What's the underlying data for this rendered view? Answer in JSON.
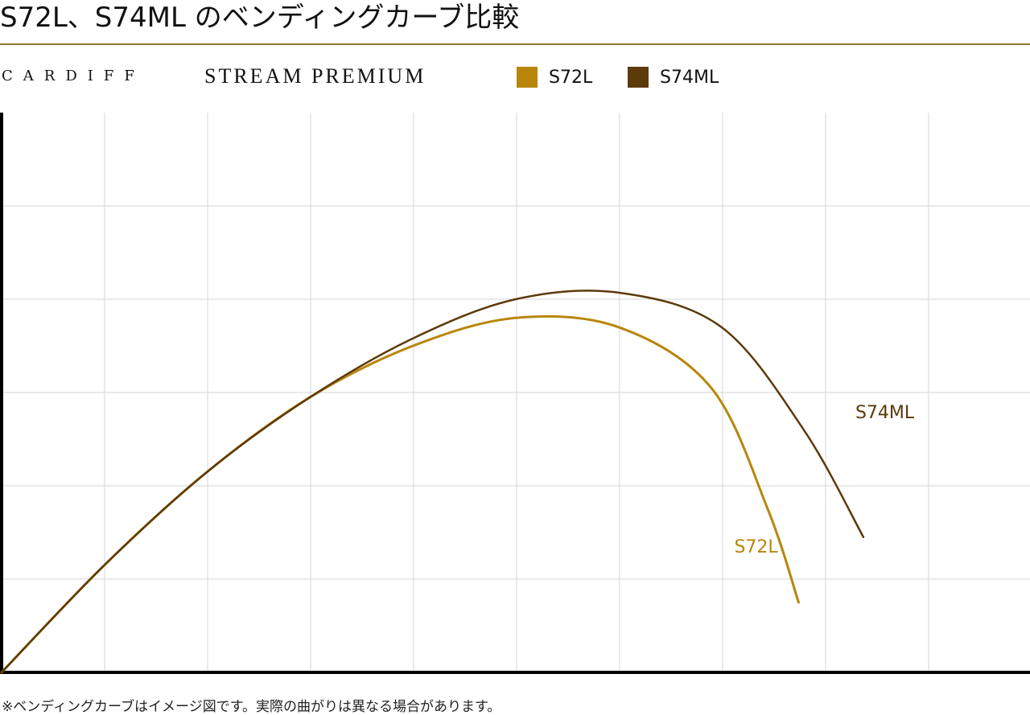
{
  "header": {
    "title": "S72L、S74ML のベンディングカーブ比較",
    "brand": "CARDIFF",
    "series": "STREAM PREMIUM"
  },
  "legend": [
    {
      "label": "S72L",
      "color": "#b8860b"
    },
    {
      "label": "S74ML",
      "color": "#5c3a0a"
    }
  ],
  "chart_data": {
    "type": "line",
    "title": "",
    "xlabel": "",
    "ylabel": "",
    "grid": true,
    "legend_position": "top",
    "xlim": [
      0,
      10
    ],
    "ylim": [
      0,
      6
    ],
    "series": [
      {
        "name": "S72L",
        "color": "#b8860b",
        "x": [
          0,
          1,
          2,
          3,
          4,
          5,
          6,
          6.9,
          7.45,
          7.75
        ],
        "y": [
          0,
          1.15,
          2.15,
          2.95,
          3.5,
          3.8,
          3.7,
          3.05,
          1.75,
          0.75
        ]
      },
      {
        "name": "S74ML",
        "color": "#5c3a0a",
        "x": [
          0,
          1,
          2,
          3,
          4,
          5,
          6,
          7,
          7.8,
          8.38
        ],
        "y": [
          0,
          1.15,
          2.15,
          2.95,
          3.58,
          4.0,
          4.07,
          3.7,
          2.6,
          1.45
        ]
      }
    ]
  },
  "footnote": "※ベンディングカーブはイメージ図です。実際の曲がりは異なる場合があります。"
}
